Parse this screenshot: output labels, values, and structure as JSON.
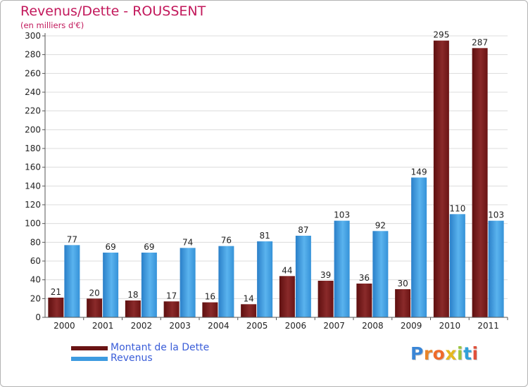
{
  "header": {
    "title": "Revenus/Dette - ROUSSENT",
    "subtitle": "(en milliers d'€)"
  },
  "chart_data": {
    "type": "bar",
    "title": "Revenus/Dette - ROUSSENT",
    "subtitle": "(en milliers d'€)",
    "xlabel": "",
    "ylabel": "",
    "categories": [
      "2000",
      "2001",
      "2002",
      "2003",
      "2004",
      "2005",
      "2006",
      "2007",
      "2008",
      "2009",
      "2010",
      "2011"
    ],
    "series": [
      {
        "name": "Montant de la Dette",
        "color": "#7a1c1c",
        "values": [
          21,
          20,
          18,
          17,
          16,
          14,
          44,
          39,
          36,
          30,
          295,
          287
        ]
      },
      {
        "name": "Revenus",
        "color": "#3d9be0",
        "values": [
          77,
          69,
          69,
          74,
          76,
          81,
          87,
          103,
          92,
          149,
          110,
          103
        ]
      }
    ],
    "ylim": [
      0,
      300
    ],
    "yticks": [
      0,
      20,
      40,
      60,
      80,
      100,
      120,
      140,
      160,
      180,
      200,
      220,
      240,
      260,
      280,
      300
    ],
    "grid": true,
    "legend_position": "bottom-left"
  },
  "legend": {
    "items": [
      {
        "label": "Montant de la Dette",
        "color": "#7a1c1c"
      },
      {
        "label": "Revenus",
        "color": "#3d9be0"
      }
    ]
  },
  "logo": {
    "letters": [
      "P",
      "r",
      "o",
      "x",
      "i",
      "t",
      "i"
    ],
    "colors": [
      "#3a86d6",
      "#e8852a",
      "#ef6a2a",
      "#e5b81f",
      "#9bc53d",
      "#2fa0d8",
      "#e0503a"
    ]
  }
}
